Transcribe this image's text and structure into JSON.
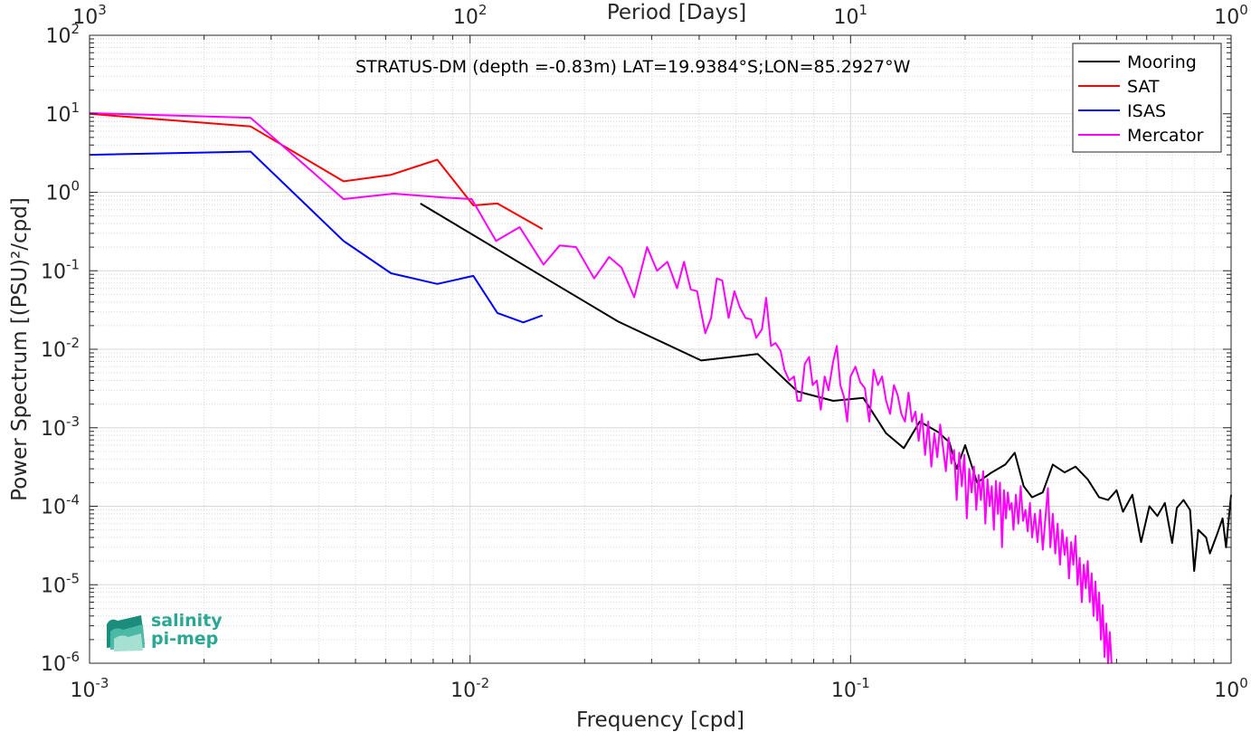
{
  "chart_data": {
    "type": "line",
    "title": "STRATUS-DM (depth =-0.83m) LAT=19.9384°S;LON=85.2927°W",
    "xlabel": "Frequency [cpd]",
    "ylabel": "Power Spectrum [(PSU)²/cpd]",
    "top_axis_label": "Period [Days]",
    "x_scale": "log",
    "y_scale": "log",
    "xlim": [
      0.001,
      1
    ],
    "ylim": [
      1e-06,
      100
    ],
    "grid": true,
    "legend_position": "top-right",
    "x_ticks": [
      {
        "value": 0.001,
        "base": "10",
        "exp": "-3"
      },
      {
        "value": 0.01,
        "base": "10",
        "exp": "-2"
      },
      {
        "value": 0.1,
        "base": "10",
        "exp": "-1"
      },
      {
        "value": 1,
        "base": "10",
        "exp": "0"
      }
    ],
    "top_ticks": [
      {
        "value": 0.001,
        "base": "10",
        "exp": "3"
      },
      {
        "value": 0.01,
        "base": "10",
        "exp": "2"
      },
      {
        "value": 0.1,
        "base": "10",
        "exp": "1"
      },
      {
        "value": 1,
        "base": "10",
        "exp": "0"
      }
    ],
    "y_ticks": [
      {
        "value": 100,
        "base": "10",
        "exp": "2"
      },
      {
        "value": 10,
        "base": "10",
        "exp": "1"
      },
      {
        "value": 1,
        "base": "10",
        "exp": "0"
      },
      {
        "value": 0.1,
        "base": "10",
        "exp": "-1"
      },
      {
        "value": 0.01,
        "base": "10",
        "exp": "-2"
      },
      {
        "value": 0.001,
        "base": "10",
        "exp": "-3"
      },
      {
        "value": 0.0001,
        "base": "10",
        "exp": "-4"
      },
      {
        "value": 1e-05,
        "base": "10",
        "exp": "-5"
      },
      {
        "value": 1e-06,
        "base": "10",
        "exp": "-6"
      }
    ],
    "series": [
      {
        "name": "Mooring",
        "color": "#000000",
        "points": [
          [
            0.0074,
            0.72
          ],
          [
            0.0245,
            0.0225
          ],
          [
            0.0405,
            0.0072
          ],
          [
            0.057,
            0.0087
          ],
          [
            0.0725,
            0.0029
          ],
          [
            0.09,
            0.0022
          ],
          [
            0.108,
            0.0024
          ],
          [
            0.124,
            0.00085
          ],
          [
            0.138,
            0.00055
          ],
          [
            0.152,
            0.0012
          ],
          [
            0.17,
            0.00088
          ],
          [
            0.182,
            0.00065
          ],
          [
            0.19,
            0.0003
          ],
          [
            0.2,
            0.0006
          ],
          [
            0.215,
            0.0002
          ],
          [
            0.235,
            0.00027
          ],
          [
            0.255,
            0.00034
          ],
          [
            0.27,
            0.00048
          ],
          [
            0.285,
            0.00018
          ],
          [
            0.3,
            0.00013
          ],
          [
            0.32,
            0.00015
          ],
          [
            0.34,
            0.00034
          ],
          [
            0.365,
            0.00027
          ],
          [
            0.39,
            0.00032
          ],
          [
            0.42,
            0.00022
          ],
          [
            0.45,
            0.00013
          ],
          [
            0.475,
            0.00012
          ],
          [
            0.5,
            0.00016
          ],
          [
            0.52,
            8.5e-05
          ],
          [
            0.55,
            0.00014
          ],
          [
            0.58,
            3.5e-05
          ],
          [
            0.61,
            0.0001
          ],
          [
            0.64,
            7.5e-05
          ],
          [
            0.67,
            0.00011
          ],
          [
            0.7,
            3.4e-05
          ],
          [
            0.72,
            9.5e-05
          ],
          [
            0.75,
            0.00012
          ],
          [
            0.78,
            9e-05
          ],
          [
            0.8,
            1.5e-05
          ],
          [
            0.82,
            5e-05
          ],
          [
            0.86,
            4e-05
          ],
          [
            0.88,
            2.5e-05
          ],
          [
            0.92,
            4.5e-05
          ],
          [
            0.95,
            7e-05
          ],
          [
            0.97,
            3e-05
          ],
          [
            1.0,
            0.00014
          ]
        ]
      },
      {
        "name": "SAT",
        "color": "#ff0000",
        "points": [
          [
            0.001,
            10
          ],
          [
            0.00265,
            6.9
          ],
          [
            0.00465,
            1.38
          ],
          [
            0.0062,
            1.67
          ],
          [
            0.0082,
            2.6
          ],
          [
            0.0102,
            0.68
          ],
          [
            0.0118,
            0.72
          ],
          [
            0.0155,
            0.34
          ]
        ]
      },
      {
        "name": "ISAS",
        "color": "#0000ff",
        "points": [
          [
            0.001,
            3.0
          ],
          [
            0.00265,
            3.3
          ],
          [
            0.00465,
            0.24
          ],
          [
            0.0062,
            0.093
          ],
          [
            0.0082,
            0.068
          ],
          [
            0.0102,
            0.086
          ],
          [
            0.0118,
            0.029
          ],
          [
            0.0138,
            0.022
          ],
          [
            0.0155,
            0.027
          ]
        ]
      },
      {
        "name": "Mercator",
        "color": "#ff00ff",
        "points": [
          [
            0.001,
            10.2
          ],
          [
            0.00265,
            8.9
          ],
          [
            0.00465,
            0.82
          ],
          [
            0.0063,
            0.96
          ],
          [
            0.0085,
            0.86
          ],
          [
            0.0101,
            0.82
          ],
          [
            0.0117,
            0.24
          ],
          [
            0.0135,
            0.36
          ],
          [
            0.0156,
            0.12
          ],
          [
            0.0172,
            0.21
          ],
          [
            0.019,
            0.2
          ],
          [
            0.0212,
            0.08
          ],
          [
            0.0232,
            0.15
          ],
          [
            0.025,
            0.11
          ],
          [
            0.027,
            0.046
          ],
          [
            0.0292,
            0.2
          ],
          [
            0.031,
            0.1
          ],
          [
            0.033,
            0.13
          ],
          [
            0.035,
            0.06
          ],
          [
            0.0365,
            0.13
          ],
          [
            0.038,
            0.058
          ],
          [
            0.0395,
            0.055
          ],
          [
            0.0415,
            0.016
          ],
          [
            0.043,
            0.025
          ],
          [
            0.0445,
            0.08
          ],
          [
            0.046,
            0.075
          ],
          [
            0.0478,
            0.025
          ],
          [
            0.0495,
            0.055
          ],
          [
            0.0512,
            0.034
          ],
          [
            0.053,
            0.025
          ],
          [
            0.0548,
            0.024
          ],
          [
            0.0565,
            0.014
          ],
          [
            0.0585,
            0.018
          ],
          [
            0.06,
            0.045
          ],
          [
            0.0618,
            0.011
          ],
          [
            0.0635,
            0.012
          ],
          [
            0.0655,
            0.0095
          ],
          [
            0.067,
            0.0055
          ],
          [
            0.069,
            0.004
          ],
          [
            0.071,
            0.0045
          ],
          [
            0.0725,
            0.0022
          ],
          [
            0.074,
            0.0022
          ],
          [
            0.0758,
            0.0065
          ],
          [
            0.0778,
            0.008
          ],
          [
            0.0795,
            0.0035
          ],
          [
            0.0815,
            0.004
          ],
          [
            0.0835,
            0.0017
          ],
          [
            0.0855,
            0.0045
          ],
          [
            0.0875,
            0.003
          ],
          [
            0.09,
            0.007
          ],
          [
            0.092,
            0.011
          ],
          [
            0.094,
            0.0035
          ],
          [
            0.096,
            0.0025
          ],
          [
            0.098,
            0.0012
          ],
          [
            0.1,
            0.0045
          ],
          [
            0.103,
            0.006
          ],
          [
            0.106,
            0.0038
          ],
          [
            0.109,
            0.0032
          ],
          [
            0.112,
            0.0012
          ],
          [
            0.115,
            0.0055
          ],
          [
            0.118,
            0.0035
          ],
          [
            0.121,
            0.0045
          ],
          [
            0.124,
            0.0022
          ],
          [
            0.127,
            0.0015
          ],
          [
            0.13,
            0.0035
          ],
          [
            0.133,
            0.0026
          ],
          [
            0.136,
            0.0015
          ],
          [
            0.139,
            0.0012
          ],
          [
            0.142,
            0.0028
          ],
          [
            0.145,
            0.0012
          ],
          [
            0.148,
            0.0016
          ],
          [
            0.151,
            0.00068
          ],
          [
            0.154,
            0.0015
          ],
          [
            0.157,
            0.00045
          ],
          [
            0.16,
            0.0012
          ],
          [
            0.163,
            0.00032
          ],
          [
            0.166,
            0.00085
          ],
          [
            0.169,
            0.00042
          ],
          [
            0.172,
            0.0011
          ],
          [
            0.175,
            0.00055
          ],
          [
            0.178,
            0.00028
          ],
          [
            0.181,
            0.00075
          ],
          [
            0.184,
            0.00035
          ],
          [
            0.187,
            0.00052
          ],
          [
            0.19,
            0.00012
          ],
          [
            0.193,
            0.00048
          ],
          [
            0.196,
            0.00018
          ],
          [
            0.199,
            0.00045
          ],
          [
            0.202,
            7e-05
          ],
          [
            0.205,
            0.0003
          ],
          [
            0.208,
            0.00015
          ],
          [
            0.211,
            0.00032
          ],
          [
            0.214,
            9e-05
          ],
          [
            0.217,
            0.00025
          ],
          [
            0.22,
            0.00012
          ],
          [
            0.223,
            0.00028
          ],
          [
            0.226,
            6e-05
          ],
          [
            0.229,
            0.00022
          ],
          [
            0.232,
            0.0001
          ],
          [
            0.235,
            0.00018
          ],
          [
            0.238,
            5e-05
          ],
          [
            0.241,
            0.00021
          ],
          [
            0.244,
            8e-05
          ],
          [
            0.247,
            0.0002
          ],
          [
            0.25,
            3e-05
          ],
          [
            0.253,
            0.00016
          ],
          [
            0.256,
            7e-05
          ],
          [
            0.259,
            0.00015
          ],
          [
            0.262,
            9e-05
          ],
          [
            0.265,
            0.00011
          ],
          [
            0.268,
            5e-05
          ],
          [
            0.272,
            0.00014
          ],
          [
            0.276,
            6e-05
          ],
          [
            0.28,
            0.00018
          ],
          [
            0.284,
            6.5e-05
          ],
          [
            0.288,
            9e-05
          ],
          [
            0.292,
            4.8e-05
          ],
          [
            0.296,
            0.00011
          ],
          [
            0.3,
            4e-05
          ],
          [
            0.305,
            8e-05
          ],
          [
            0.31,
            3.5e-05
          ],
          [
            0.315,
            9e-05
          ],
          [
            0.32,
            2.8e-05
          ],
          [
            0.325,
            7e-05
          ],
          [
            0.33,
            0.00017
          ],
          [
            0.335,
            3e-05
          ],
          [
            0.34,
            8e-05
          ],
          [
            0.345,
            2.5e-05
          ],
          [
            0.35,
            6e-05
          ],
          [
            0.355,
            1.8e-05
          ],
          [
            0.36,
            5e-05
          ],
          [
            0.365,
            2.4e-05
          ],
          [
            0.37,
            4e-05
          ],
          [
            0.375,
            1.2e-05
          ],
          [
            0.38,
            3.5e-05
          ],
          [
            0.385,
            1.8e-05
          ],
          [
            0.39,
            4.2e-05
          ],
          [
            0.395,
            1e-05
          ],
          [
            0.4,
            2.2e-05
          ],
          [
            0.405,
            6e-06
          ],
          [
            0.41,
            1.8e-05
          ],
          [
            0.415,
            9e-06
          ],
          [
            0.42,
            2e-05
          ],
          [
            0.425,
            6e-06
          ],
          [
            0.43,
            1.4e-05
          ],
          [
            0.435,
            4e-06
          ],
          [
            0.44,
            1.1e-05
          ],
          [
            0.445,
            3.5e-06
          ],
          [
            0.45,
            8e-06
          ],
          [
            0.455,
            2e-06
          ],
          [
            0.46,
            5.5e-06
          ],
          [
            0.465,
            1.2e-06
          ],
          [
            0.47,
            3.2e-06
          ],
          [
            0.475,
            1e-06
          ],
          [
            0.48,
            2.5e-06
          ],
          [
            0.485,
            1e-06
          ]
        ]
      }
    ]
  },
  "logo": {
    "line1": "salinity",
    "line2": "pi-mep"
  }
}
